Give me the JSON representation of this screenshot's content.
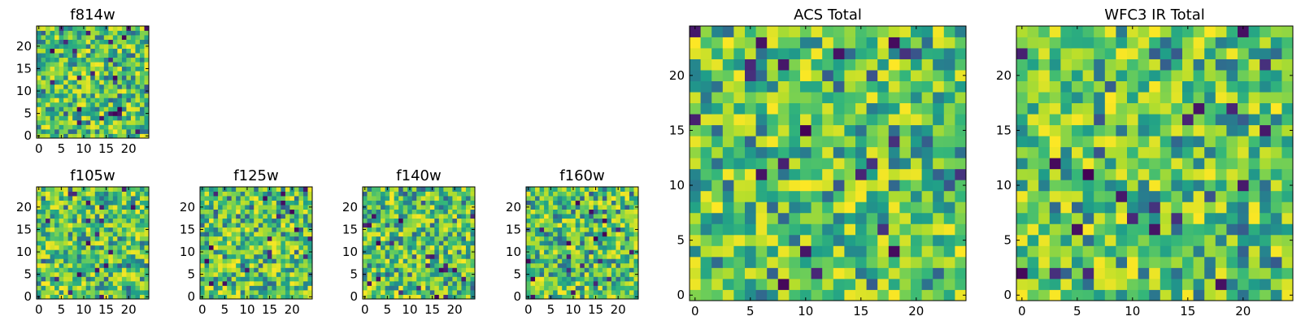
{
  "chart_data": [
    {
      "type": "heatmap",
      "title": "f814w",
      "grid": [
        25,
        25
      ],
      "xlim": [
        0,
        24
      ],
      "ylim": [
        0,
        24
      ],
      "xticks": [
        "0",
        "5",
        "10",
        "15",
        "20"
      ],
      "yticks": [
        "0",
        "5",
        "10",
        "15",
        "20"
      ],
      "colormap": "viridis"
    },
    {
      "type": "heatmap",
      "title": "f105w",
      "grid": [
        25,
        25
      ],
      "xlim": [
        0,
        24
      ],
      "ylim": [
        0,
        24
      ],
      "xticks": [
        "0",
        "5",
        "10",
        "15",
        "20"
      ],
      "yticks": [
        "0",
        "5",
        "10",
        "15",
        "20"
      ],
      "colormap": "viridis"
    },
    {
      "type": "heatmap",
      "title": "f125w",
      "grid": [
        25,
        25
      ],
      "xlim": [
        0,
        24
      ],
      "ylim": [
        0,
        24
      ],
      "xticks": [
        "0",
        "5",
        "10",
        "15",
        "20"
      ],
      "yticks": [
        "0",
        "5",
        "10",
        "15",
        "20"
      ],
      "colormap": "viridis"
    },
    {
      "type": "heatmap",
      "title": "f140w",
      "grid": [
        25,
        25
      ],
      "xlim": [
        0,
        24
      ],
      "ylim": [
        0,
        24
      ],
      "xticks": [
        "0",
        "5",
        "10",
        "15",
        "20"
      ],
      "yticks": [
        "0",
        "5",
        "10",
        "15",
        "20"
      ],
      "colormap": "viridis"
    },
    {
      "type": "heatmap",
      "title": "f160w",
      "grid": [
        25,
        25
      ],
      "xlim": [
        0,
        24
      ],
      "ylim": [
        0,
        24
      ],
      "xticks": [
        "0",
        "5",
        "10",
        "15",
        "20"
      ],
      "yticks": [
        "0",
        "5",
        "10",
        "15",
        "20"
      ],
      "colormap": "viridis"
    },
    {
      "type": "heatmap",
      "title": "ACS Total",
      "grid": [
        25,
        25
      ],
      "xlim": [
        0,
        24
      ],
      "ylim": [
        0,
        24
      ],
      "xticks": [
        "0",
        "5",
        "10",
        "15",
        "20"
      ],
      "yticks": [
        "0",
        "5",
        "10",
        "15",
        "20"
      ],
      "colormap": "viridis"
    },
    {
      "type": "heatmap",
      "title": "WFC3 IR Total",
      "grid": [
        25,
        25
      ],
      "xlim": [
        0,
        24
      ],
      "ylim": [
        0,
        24
      ],
      "xticks": [
        "0",
        "5",
        "10",
        "15",
        "20"
      ],
      "yticks": [
        "0",
        "5",
        "10",
        "15",
        "20"
      ],
      "colormap": "viridis"
    }
  ]
}
